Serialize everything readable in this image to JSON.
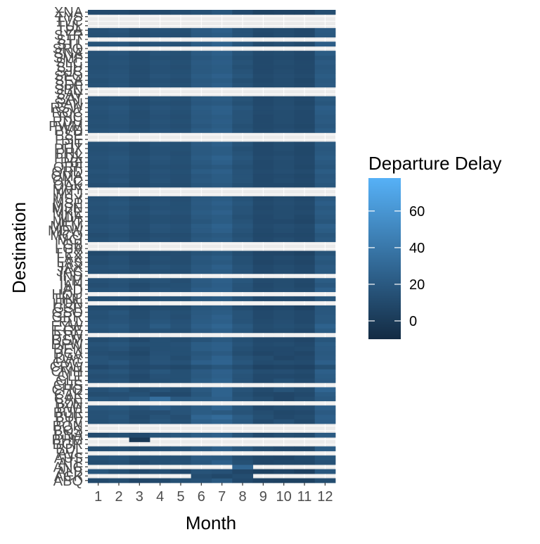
{
  "chart_data": {
    "type": "heatmap",
    "title": "",
    "xlabel": "Month",
    "ylabel": "Destination",
    "x_categories": [
      "1",
      "2",
      "3",
      "4",
      "5",
      "6",
      "7",
      "8",
      "9",
      "10",
      "11",
      "12"
    ],
    "y_categories": [
      "ABQ",
      "ACK",
      "ALB",
      "ANC",
      "ATL",
      "AUS",
      "AVL",
      "BDL",
      "BGR",
      "BHM",
      "BNA",
      "BOS",
      "BQN",
      "BTV",
      "BUF",
      "BUR",
      "BWI",
      "BZN",
      "CAE",
      "CAK",
      "CHO",
      "CHS",
      "CLE",
      "CLT",
      "CMH",
      "CRW",
      "CVG",
      "DAY",
      "DCA",
      "DEN",
      "DFW",
      "DSM",
      "DTW",
      "EGE",
      "EYW",
      "FLL",
      "GRR",
      "GSO",
      "GSP",
      "HDN",
      "HNL",
      "HOU",
      "IAD",
      "IAH",
      "ILM",
      "IND",
      "JAC",
      "JAX",
      "LAS",
      "LAX",
      "LEX",
      "LGA",
      "LGB",
      "MCI",
      "MCO",
      "MDW",
      "MEM",
      "MHT",
      "MIA",
      "MKE",
      "MSN",
      "MSP",
      "MSY",
      "MTJ",
      "MVY",
      "OAK",
      "OKC",
      "OMA",
      "ORD",
      "ORF",
      "PBI",
      "PDX",
      "PHL",
      "PHX",
      "PIT",
      "PSE",
      "PSP",
      "PVD",
      "PWM",
      "RDU",
      "RIC",
      "ROC",
      "RSW",
      "SAN",
      "SAT",
      "SAV",
      "SBN",
      "SDF",
      "SEA",
      "SFO",
      "SJC",
      "SJU",
      "SLC",
      "SMF",
      "SNA",
      "SRQ",
      "STL",
      "STT",
      "SYR",
      "TPA",
      "TUL",
      "TVC",
      "TYS",
      "XNA"
    ],
    "values_note": "values[r][c]: mean departure delay (minutes) for destination y_categories[r] and month x_categories[c]; null = missing cell",
    "values": [
      [
        10,
        12,
        8,
        10,
        14,
        15,
        20,
        10,
        6,
        5,
        5,
        12
      ],
      [
        null,
        null,
        null,
        null,
        null,
        12,
        9,
        12,
        null,
        null,
        null,
        null
      ],
      [
        18,
        14,
        10,
        14,
        10,
        16,
        15,
        8,
        5,
        7,
        4,
        19
      ],
      [
        null,
        null,
        null,
        null,
        null,
        null,
        null,
        28,
        null,
        null,
        null,
        null
      ],
      [
        12,
        14,
        10,
        14,
        15,
        19,
        24,
        14,
        8,
        9,
        9,
        15
      ],
      [
        16,
        18,
        14,
        15,
        14,
        21,
        20,
        12,
        9,
        8,
        11,
        18
      ],
      [
        null,
        null,
        null,
        null,
        null,
        null,
        null,
        null,
        null,
        null,
        null,
        null
      ],
      [
        13,
        14,
        12,
        15,
        16,
        20,
        24,
        18,
        12,
        10,
        9,
        22
      ],
      [
        null,
        null,
        null,
        null,
        null,
        null,
        null,
        null,
        null,
        null,
        null,
        null
      ],
      [
        null,
        null,
        0,
        null,
        null,
        null,
        null,
        null,
        null,
        null,
        null,
        null
      ],
      [
        11,
        14,
        10,
        16,
        18,
        22,
        24,
        16,
        10,
        12,
        11,
        21
      ],
      [
        null,
        null,
        null,
        null,
        null,
        null,
        null,
        null,
        null,
        null,
        null,
        null
      ],
      [
        null,
        null,
        null,
        null,
        null,
        null,
        null,
        null,
        null,
        null,
        null,
        null
      ],
      [
        14,
        16,
        12,
        18,
        14,
        24,
        26,
        20,
        11,
        15,
        10,
        23
      ],
      [
        15,
        18,
        11,
        16,
        13,
        28,
        32,
        22,
        14,
        10,
        12,
        24
      ],
      [
        15,
        16,
        12,
        13,
        16,
        22,
        20,
        16,
        12,
        9,
        10,
        21
      ],
      [
        19,
        20,
        16,
        23,
        17,
        22,
        28,
        18,
        10,
        12,
        13,
        24
      ],
      [
        null,
        null,
        null,
        null,
        null,
        null,
        null,
        null,
        null,
        null,
        null,
        null
      ],
      [
        18,
        17,
        22,
        34,
        20,
        22,
        24,
        16,
        12,
        8,
        12,
        20
      ],
      [
        12,
        13,
        14,
        10,
        10,
        18,
        26,
        14,
        9,
        8,
        10,
        22
      ],
      [
        15,
        18,
        12,
        16,
        12,
        20,
        26,
        16,
        11,
        16,
        12,
        28
      ],
      [
        null,
        null,
        null,
        null,
        null,
        null,
        null,
        null,
        null,
        null,
        null,
        null
      ],
      [
        15,
        16,
        11,
        14,
        14,
        22,
        26,
        16,
        10,
        14,
        11,
        21
      ],
      [
        13,
        14,
        10,
        15,
        14,
        20,
        24,
        16,
        10,
        10,
        9,
        22
      ],
      [
        16,
        18,
        13,
        18,
        14,
        21,
        25,
        18,
        12,
        13,
        11,
        24
      ],
      [
        10,
        13,
        10,
        11,
        9,
        14,
        18,
        12,
        6,
        7,
        6,
        14
      ],
      [
        16,
        19,
        13,
        17,
        15,
        24,
        27,
        18,
        11,
        12,
        11,
        24
      ],
      [
        16,
        14,
        12,
        16,
        12,
        20,
        26,
        16,
        12,
        8,
        10,
        21
      ],
      [
        13,
        12,
        9,
        15,
        14,
        18,
        21,
        12,
        8,
        10,
        8,
        20
      ],
      [
        14,
        16,
        11,
        14,
        14,
        22,
        24,
        14,
        10,
        10,
        11,
        21
      ],
      [
        16,
        18,
        14,
        14,
        15,
        22,
        24,
        16,
        11,
        12,
        10,
        22
      ],
      [
        12,
        14,
        10,
        14,
        12,
        16,
        20,
        14,
        10,
        10,
        8,
        18
      ],
      [
        null,
        null,
        null,
        null,
        null,
        null,
        null,
        null,
        null,
        null,
        null,
        null
      ],
      [
        16,
        18,
        14,
        16,
        14,
        21,
        24,
        18,
        11,
        12,
        10,
        22
      ],
      [
        18,
        20,
        15,
        22,
        16,
        24,
        28,
        20,
        12,
        14,
        12,
        26
      ],
      [
        16,
        17,
        14,
        18,
        15,
        22,
        24,
        16,
        11,
        13,
        10,
        20
      ],
      [
        14,
        16,
        12,
        16,
        13,
        21,
        25,
        16,
        10,
        12,
        10,
        20
      ],
      [
        15,
        18,
        12,
        16,
        14,
        20,
        22,
        16,
        10,
        12,
        10,
        19
      ],
      [
        12,
        12,
        10,
        12,
        11,
        18,
        20,
        12,
        8,
        10,
        6,
        18
      ],
      [
        null,
        null,
        null,
        null,
        null,
        null,
        null,
        null,
        null,
        null,
        null,
        null
      ],
      [
        14,
        15,
        12,
        16,
        14,
        20,
        22,
        16,
        10,
        11,
        10,
        18
      ],
      [
        null,
        null,
        null,
        null,
        null,
        null,
        null,
        null,
        null,
        null,
        null,
        null
      ],
      [
        16,
        17,
        13,
        17,
        15,
        23,
        24,
        16,
        11,
        13,
        11,
        24
      ],
      [
        13,
        15,
        11,
        14,
        14,
        20,
        23,
        16,
        10,
        12,
        9,
        19
      ],
      [
        15,
        16,
        14,
        16,
        13,
        21,
        24,
        18,
        11,
        12,
        10,
        22
      ],
      [
        null,
        null,
        null,
        null,
        null,
        null,
        null,
        null,
        null,
        null,
        null,
        null
      ],
      [
        14,
        14,
        12,
        14,
        13,
        20,
        22,
        16,
        10,
        12,
        10,
        20
      ],
      [
        15,
        16,
        13,
        16,
        14,
        20,
        24,
        16,
        10,
        12,
        10,
        21
      ],
      [
        12,
        14,
        10,
        13,
        12,
        18,
        20,
        14,
        8,
        10,
        8,
        18
      ],
      [
        13,
        15,
        11,
        14,
        12,
        19,
        22,
        14,
        9,
        11,
        9,
        20
      ],
      [
        10,
        12,
        10,
        12,
        12,
        16,
        18,
        12,
        8,
        8,
        6,
        16
      ],
      [
        null,
        null,
        null,
        null,
        null,
        null,
        null,
        null,
        null,
        null,
        null,
        null
      ],
      [
        null,
        null,
        null,
        null,
        null,
        null,
        null,
        null,
        null,
        null,
        null,
        null
      ],
      [
        14,
        16,
        12,
        15,
        13,
        20,
        22,
        16,
        10,
        12,
        10,
        20
      ],
      [
        12,
        14,
        11,
        13,
        12,
        18,
        20,
        14,
        9,
        10,
        9,
        18
      ],
      [
        15,
        16,
        12,
        16,
        14,
        21,
        24,
        16,
        10,
        12,
        10,
        22
      ],
      [
        16,
        17,
        13,
        17,
        15,
        22,
        26,
        18,
        11,
        13,
        11,
        24
      ],
      [
        14,
        15,
        12,
        14,
        13,
        18,
        22,
        16,
        10,
        10,
        8,
        18
      ],
      [
        14,
        16,
        12,
        14,
        13,
        20,
        22,
        14,
        10,
        12,
        9,
        20
      ],
      [
        16,
        18,
        14,
        17,
        15,
        22,
        25,
        16,
        11,
        12,
        11,
        22
      ],
      [
        15,
        16,
        12,
        15,
        14,
        20,
        22,
        16,
        10,
        12,
        10,
        20
      ],
      [
        16,
        18,
        14,
        16,
        14,
        21,
        24,
        18,
        11,
        13,
        11,
        23
      ],
      [
        15,
        16,
        12,
        15,
        13,
        20,
        22,
        16,
        10,
        12,
        10,
        20
      ],
      [
        null,
        null,
        null,
        null,
        null,
        null,
        null,
        null,
        null,
        null,
        null,
        null
      ],
      [
        null,
        null,
        null,
        null,
        null,
        null,
        null,
        null,
        null,
        null,
        null,
        null
      ],
      [
        13,
        14,
        11,
        14,
        12,
        18,
        20,
        14,
        10,
        10,
        9,
        18
      ],
      [
        15,
        17,
        12,
        16,
        13,
        20,
        22,
        16,
        10,
        12,
        10,
        20
      ],
      [
        14,
        15,
        12,
        15,
        13,
        19,
        22,
        16,
        10,
        11,
        9,
        19
      ],
      [
        16,
        17,
        13,
        16,
        14,
        22,
        24,
        16,
        11,
        13,
        11,
        22
      ],
      [
        14,
        16,
        12,
        14,
        13,
        18,
        20,
        14,
        10,
        12,
        9,
        18
      ],
      [
        15,
        17,
        13,
        16,
        14,
        20,
        24,
        16,
        10,
        12,
        10,
        20
      ],
      [
        16,
        18,
        14,
        17,
        14,
        22,
        26,
        18,
        11,
        13,
        10,
        22
      ],
      [
        15,
        16,
        12,
        15,
        13,
        20,
        22,
        16,
        10,
        11,
        9,
        20
      ],
      [
        14,
        15,
        12,
        15,
        14,
        20,
        22,
        14,
        10,
        12,
        9,
        19
      ],
      [
        15,
        16,
        12,
        16,
        14,
        21,
        24,
        16,
        10,
        12,
        10,
        20
      ],
      [
        null,
        null,
        null,
        null,
        null,
        null,
        null,
        null,
        null,
        null,
        null,
        null
      ],
      [
        null,
        null,
        null,
        null,
        null,
        null,
        null,
        null,
        null,
        null,
        null,
        null
      ],
      [
        16,
        17,
        14,
        17,
        15,
        22,
        24,
        16,
        11,
        13,
        11,
        22
      ],
      [
        14,
        15,
        12,
        15,
        13,
        19,
        22,
        14,
        10,
        11,
        9,
        19
      ],
      [
        15,
        16,
        13,
        16,
        14,
        21,
        23,
        16,
        10,
        12,
        10,
        21
      ],
      [
        14,
        16,
        12,
        15,
        13,
        20,
        22,
        16,
        10,
        12,
        10,
        20
      ],
      [
        15,
        17,
        12,
        16,
        14,
        21,
        24,
        16,
        11,
        12,
        10,
        22
      ],
      [
        16,
        18,
        14,
        17,
        15,
        22,
        24,
        18,
        11,
        13,
        11,
        23
      ],
      [
        14,
        15,
        12,
        14,
        13,
        19,
        20,
        14,
        10,
        12,
        9,
        18
      ],
      [
        15,
        16,
        13,
        16,
        14,
        20,
        22,
        16,
        10,
        12,
        10,
        20
      ],
      [
        null,
        null,
        null,
        null,
        null,
        null,
        null,
        null,
        null,
        null,
        null,
        null
      ],
      [
        null,
        null,
        null,
        null,
        null,
        null,
        null,
        null,
        null,
        null,
        null,
        null
      ],
      [
        15,
        17,
        13,
        16,
        14,
        21,
        24,
        16,
        11,
        12,
        10,
        21
      ],
      [
        14,
        16,
        12,
        15,
        13,
        20,
        22,
        14,
        10,
        12,
        9,
        20
      ],
      [
        16,
        17,
        13,
        17,
        15,
        22,
        25,
        18,
        11,
        13,
        11,
        22
      ],
      [
        15,
        16,
        12,
        15,
        14,
        20,
        22,
        16,
        10,
        12,
        10,
        20
      ],
      [
        14,
        15,
        12,
        15,
        13,
        20,
        22,
        14,
        10,
        11,
        10,
        19
      ],
      [
        15,
        16,
        13,
        16,
        14,
        21,
        23,
        16,
        10,
        12,
        10,
        21
      ],
      [
        14,
        15,
        12,
        14,
        13,
        19,
        22,
        14,
        10,
        11,
        9,
        18
      ],
      [
        15,
        17,
        13,
        16,
        14,
        21,
        24,
        16,
        11,
        12,
        10,
        22
      ],
      [
        null,
        null,
        null,
        null,
        null,
        null,
        null,
        null,
        null,
        null,
        null,
        null
      ],
      [
        16,
        18,
        14,
        17,
        15,
        22,
        26,
        18,
        11,
        13,
        11,
        23
      ],
      [
        null,
        null,
        null,
        null,
        null,
        null,
        null,
        null,
        null,
        null,
        null,
        null
      ],
      [
        14,
        15,
        12,
        15,
        13,
        20,
        22,
        16,
        10,
        12,
        10,
        20
      ],
      [
        15,
        17,
        13,
        16,
        14,
        21,
        24,
        16,
        11,
        12,
        10,
        21
      ],
      [
        null,
        null,
        null,
        null,
        null,
        null,
        null,
        null,
        null,
        null,
        null,
        null
      ],
      [
        null,
        null,
        null,
        null,
        null,
        null,
        null,
        null,
        null,
        null,
        null,
        null
      ],
      [
        null,
        null,
        null,
        null,
        null,
        null,
        null,
        null,
        null,
        null,
        null,
        null
      ],
      [
        10,
        10,
        8,
        10,
        12,
        14,
        18,
        10,
        5,
        6,
        6,
        12
      ]
    ],
    "color_scale": {
      "low": "#132B43",
      "high": "#56B1F7",
      "limits": [
        -10,
        78
      ],
      "missing": "#7f7f7f"
    },
    "legend": {
      "title": "Departure Delay",
      "breaks": [
        0,
        20,
        40,
        60
      ],
      "labels": [
        "0",
        "20",
        "40",
        "60"
      ],
      "placement": "right"
    },
    "grid": true,
    "background": "#ebebeb"
  }
}
